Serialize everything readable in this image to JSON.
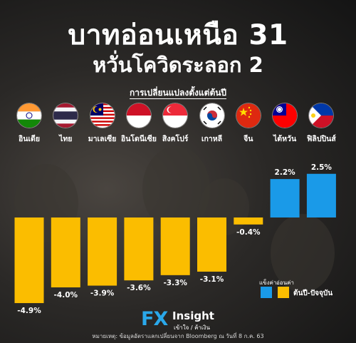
{
  "title": "บาทอ่อนเหนือ 31",
  "subtitle": "หวั่นโควิดระลอก 2",
  "caption": "การเปลี่ยนแปลงตั้งแต่ต้นปี",
  "colors": {
    "up": "#1a9ae8",
    "down": "#fbbd00"
  },
  "chart_data": {
    "type": "bar",
    "categories": [
      "อินเดีย",
      "ไทย",
      "มาเลเซีย",
      "อินโดนีเซีย",
      "สิงคโปร์",
      "เกาหลี",
      "จีน",
      "ไต้หวัน",
      "ฟิลิปปินส์"
    ],
    "values": [
      -4.9,
      -4.0,
      -3.9,
      -3.6,
      -3.3,
      -3.1,
      -0.4,
      2.2,
      2.5
    ],
    "value_labels": [
      "-4.9%",
      "-4.0%",
      "-3.9%",
      "-3.6%",
      "-3.3%",
      "-3.1%",
      "-0.4%",
      "2.2%",
      "2.5%"
    ],
    "flags": [
      "india-flag",
      "thailand-flag",
      "malaysia-flag",
      "indonesia-flag",
      "singapore-flag",
      "korea-flag",
      "china-flag",
      "taiwan-flag",
      "philippines-flag"
    ],
    "ylim": [
      -5.3,
      3.2
    ]
  },
  "legend": {
    "up_label": "แข็งค่า",
    "down_label": "อ่อนค่า",
    "period_label": "ต้นปี-ปัจจุบัน"
  },
  "logo": {
    "fx": "FX",
    "insight": "Insight",
    "tagline": "เข้าใจ / ค้าเงิน"
  },
  "note": "หมายเหตุ: ข้อมูลอัตราแลกเปลี่ยนจาก Bloomberg ณ วันที่ 8 ก.ค. 63"
}
